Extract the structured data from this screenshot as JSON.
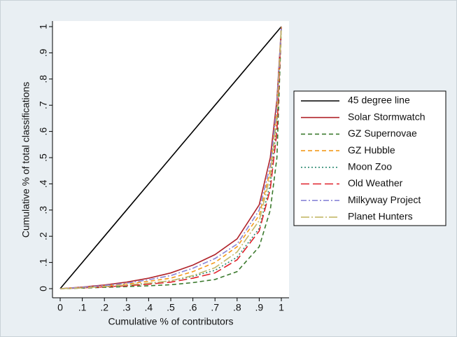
{
  "chart_data": {
    "type": "line",
    "xlabel": "Cumulative % of contributors",
    "ylabel": "Cumulative % of total classifications",
    "x": [
      0,
      0.1,
      0.2,
      0.3,
      0.4,
      0.5,
      0.6,
      0.7,
      0.8,
      0.9,
      0.95,
      0.98,
      1
    ],
    "xlim": [
      0,
      1
    ],
    "ylim": [
      0,
      1
    ],
    "xticks": [
      0,
      {
        "value": 0.1,
        "label": ".1"
      },
      {
        "value": 0.2,
        "label": ".2"
      },
      {
        "value": 0.3,
        "label": ".3"
      },
      {
        "value": 0.4,
        "label": ".4"
      },
      {
        "value": 0.5,
        "label": ".5"
      },
      {
        "value": 0.6,
        "label": ".6"
      },
      {
        "value": 0.7,
        "label": ".7"
      },
      {
        "value": 0.8,
        "label": ".8"
      },
      {
        "value": 0.9,
        "label": ".9"
      },
      1
    ],
    "yticks": [
      0,
      {
        "value": 0.1,
        "label": ".1"
      },
      {
        "value": 0.2,
        "label": ".2"
      },
      {
        "value": 0.3,
        "label": ".3"
      },
      {
        "value": 0.4,
        "label": ".4"
      },
      {
        "value": 0.5,
        "label": ".5"
      },
      {
        "value": 0.6,
        "label": ".6"
      },
      {
        "value": 0.7,
        "label": ".7"
      },
      {
        "value": 0.8,
        "label": ".8"
      },
      {
        "value": 0.9,
        "label": ".9"
      },
      1
    ],
    "grid": false,
    "legend": "right",
    "series": [
      {
        "name": "45 degree line",
        "color": "#000000",
        "dash": "solid",
        "values": [
          0,
          0.1,
          0.2,
          0.3,
          0.4,
          0.5,
          0.6,
          0.7,
          0.8,
          0.9,
          0.95,
          0.98,
          1
        ]
      },
      {
        "name": "Solar Stormwatch",
        "color": "#b0232a",
        "dash": "solid",
        "values": [
          0,
          0.006,
          0.014,
          0.025,
          0.04,
          0.06,
          0.09,
          0.13,
          0.19,
          0.32,
          0.5,
          0.72,
          1
        ]
      },
      {
        "name": "GZ Supernovae",
        "color": "#3c7a2e",
        "dash": "dash",
        "values": [
          0,
          0.002,
          0.005,
          0.008,
          0.011,
          0.015,
          0.023,
          0.035,
          0.065,
          0.16,
          0.3,
          0.5,
          1
        ]
      },
      {
        "name": "GZ Hubble",
        "color": "#f39a1c",
        "dash": "dash",
        "values": [
          0,
          0.004,
          0.01,
          0.018,
          0.028,
          0.04,
          0.065,
          0.1,
          0.16,
          0.28,
          0.45,
          0.68,
          1
        ]
      },
      {
        "name": "Moon Zoo",
        "color": "#2c8a72",
        "dash": "dot",
        "values": [
          0,
          0.003,
          0.008,
          0.013,
          0.02,
          0.03,
          0.047,
          0.07,
          0.12,
          0.23,
          0.4,
          0.63,
          1
        ]
      },
      {
        "name": "Old Weather",
        "color": "#e0202a",
        "dash": "longdash",
        "values": [
          0,
          0.003,
          0.007,
          0.011,
          0.017,
          0.025,
          0.04,
          0.06,
          0.11,
          0.22,
          0.38,
          0.6,
          1
        ]
      },
      {
        "name": "Milkyway Project",
        "color": "#8a86d8",
        "dash": "dashdot",
        "values": [
          0,
          0.005,
          0.012,
          0.021,
          0.034,
          0.05,
          0.078,
          0.115,
          0.17,
          0.3,
          0.47,
          0.7,
          1
        ]
      },
      {
        "name": "Planet Hunters",
        "color": "#c4b868",
        "dash": "longdashdot",
        "values": [
          0,
          0.003,
          0.008,
          0.014,
          0.021,
          0.03,
          0.05,
          0.08,
          0.14,
          0.26,
          0.43,
          0.66,
          1
        ]
      }
    ]
  }
}
